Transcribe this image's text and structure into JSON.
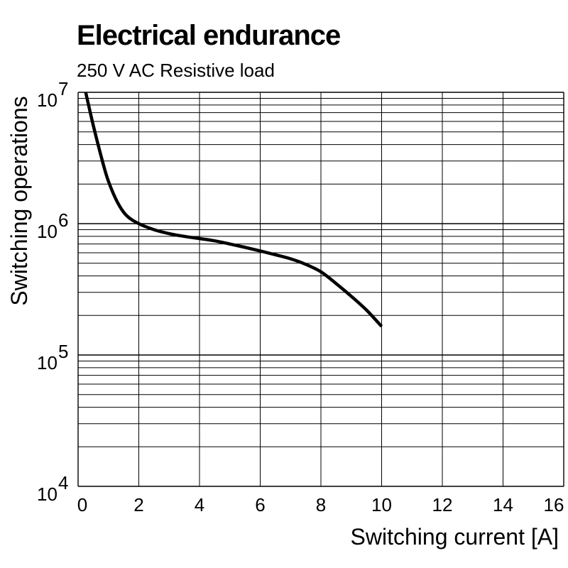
{
  "chart_data": {
    "type": "line",
    "title": "Electrical endurance",
    "subtitle": "250 V AC Resistive load",
    "xlabel": "Switching current [A]",
    "ylabel": "Switching operations",
    "xlim": [
      0,
      16
    ],
    "ylim": [
      10000,
      10000000
    ],
    "yscale": "log",
    "grid": true,
    "x_ticks": [
      0,
      2,
      4,
      6,
      8,
      10,
      12,
      14,
      16
    ],
    "y_ticks": [
      {
        "value": 10000,
        "base": "10",
        "exp": "4"
      },
      {
        "value": 100000,
        "base": "10",
        "exp": "5"
      },
      {
        "value": 1000000,
        "base": "10",
        "exp": "6"
      },
      {
        "value": 10000000,
        "base": "10",
        "exp": "7"
      }
    ],
    "series": [
      {
        "color": "#000000",
        "x": [
          0.25,
          0.5,
          0.8,
          1.0,
          1.3,
          1.6,
          2.0,
          2.5,
          3.0,
          3.5,
          4.0,
          4.5,
          5.0,
          5.5,
          6.0,
          6.5,
          7.0,
          7.5,
          8.0,
          8.5,
          9.0,
          9.5,
          10.0
        ],
        "y": [
          10000000,
          5600000,
          3000000,
          2100000,
          1450000,
          1150000,
          1000000,
          900000,
          840000,
          800000,
          770000,
          740000,
          700000,
          660000,
          620000,
          580000,
          540000,
          490000,
          430000,
          350000,
          280000,
          220000,
          165000
        ]
      }
    ]
  }
}
